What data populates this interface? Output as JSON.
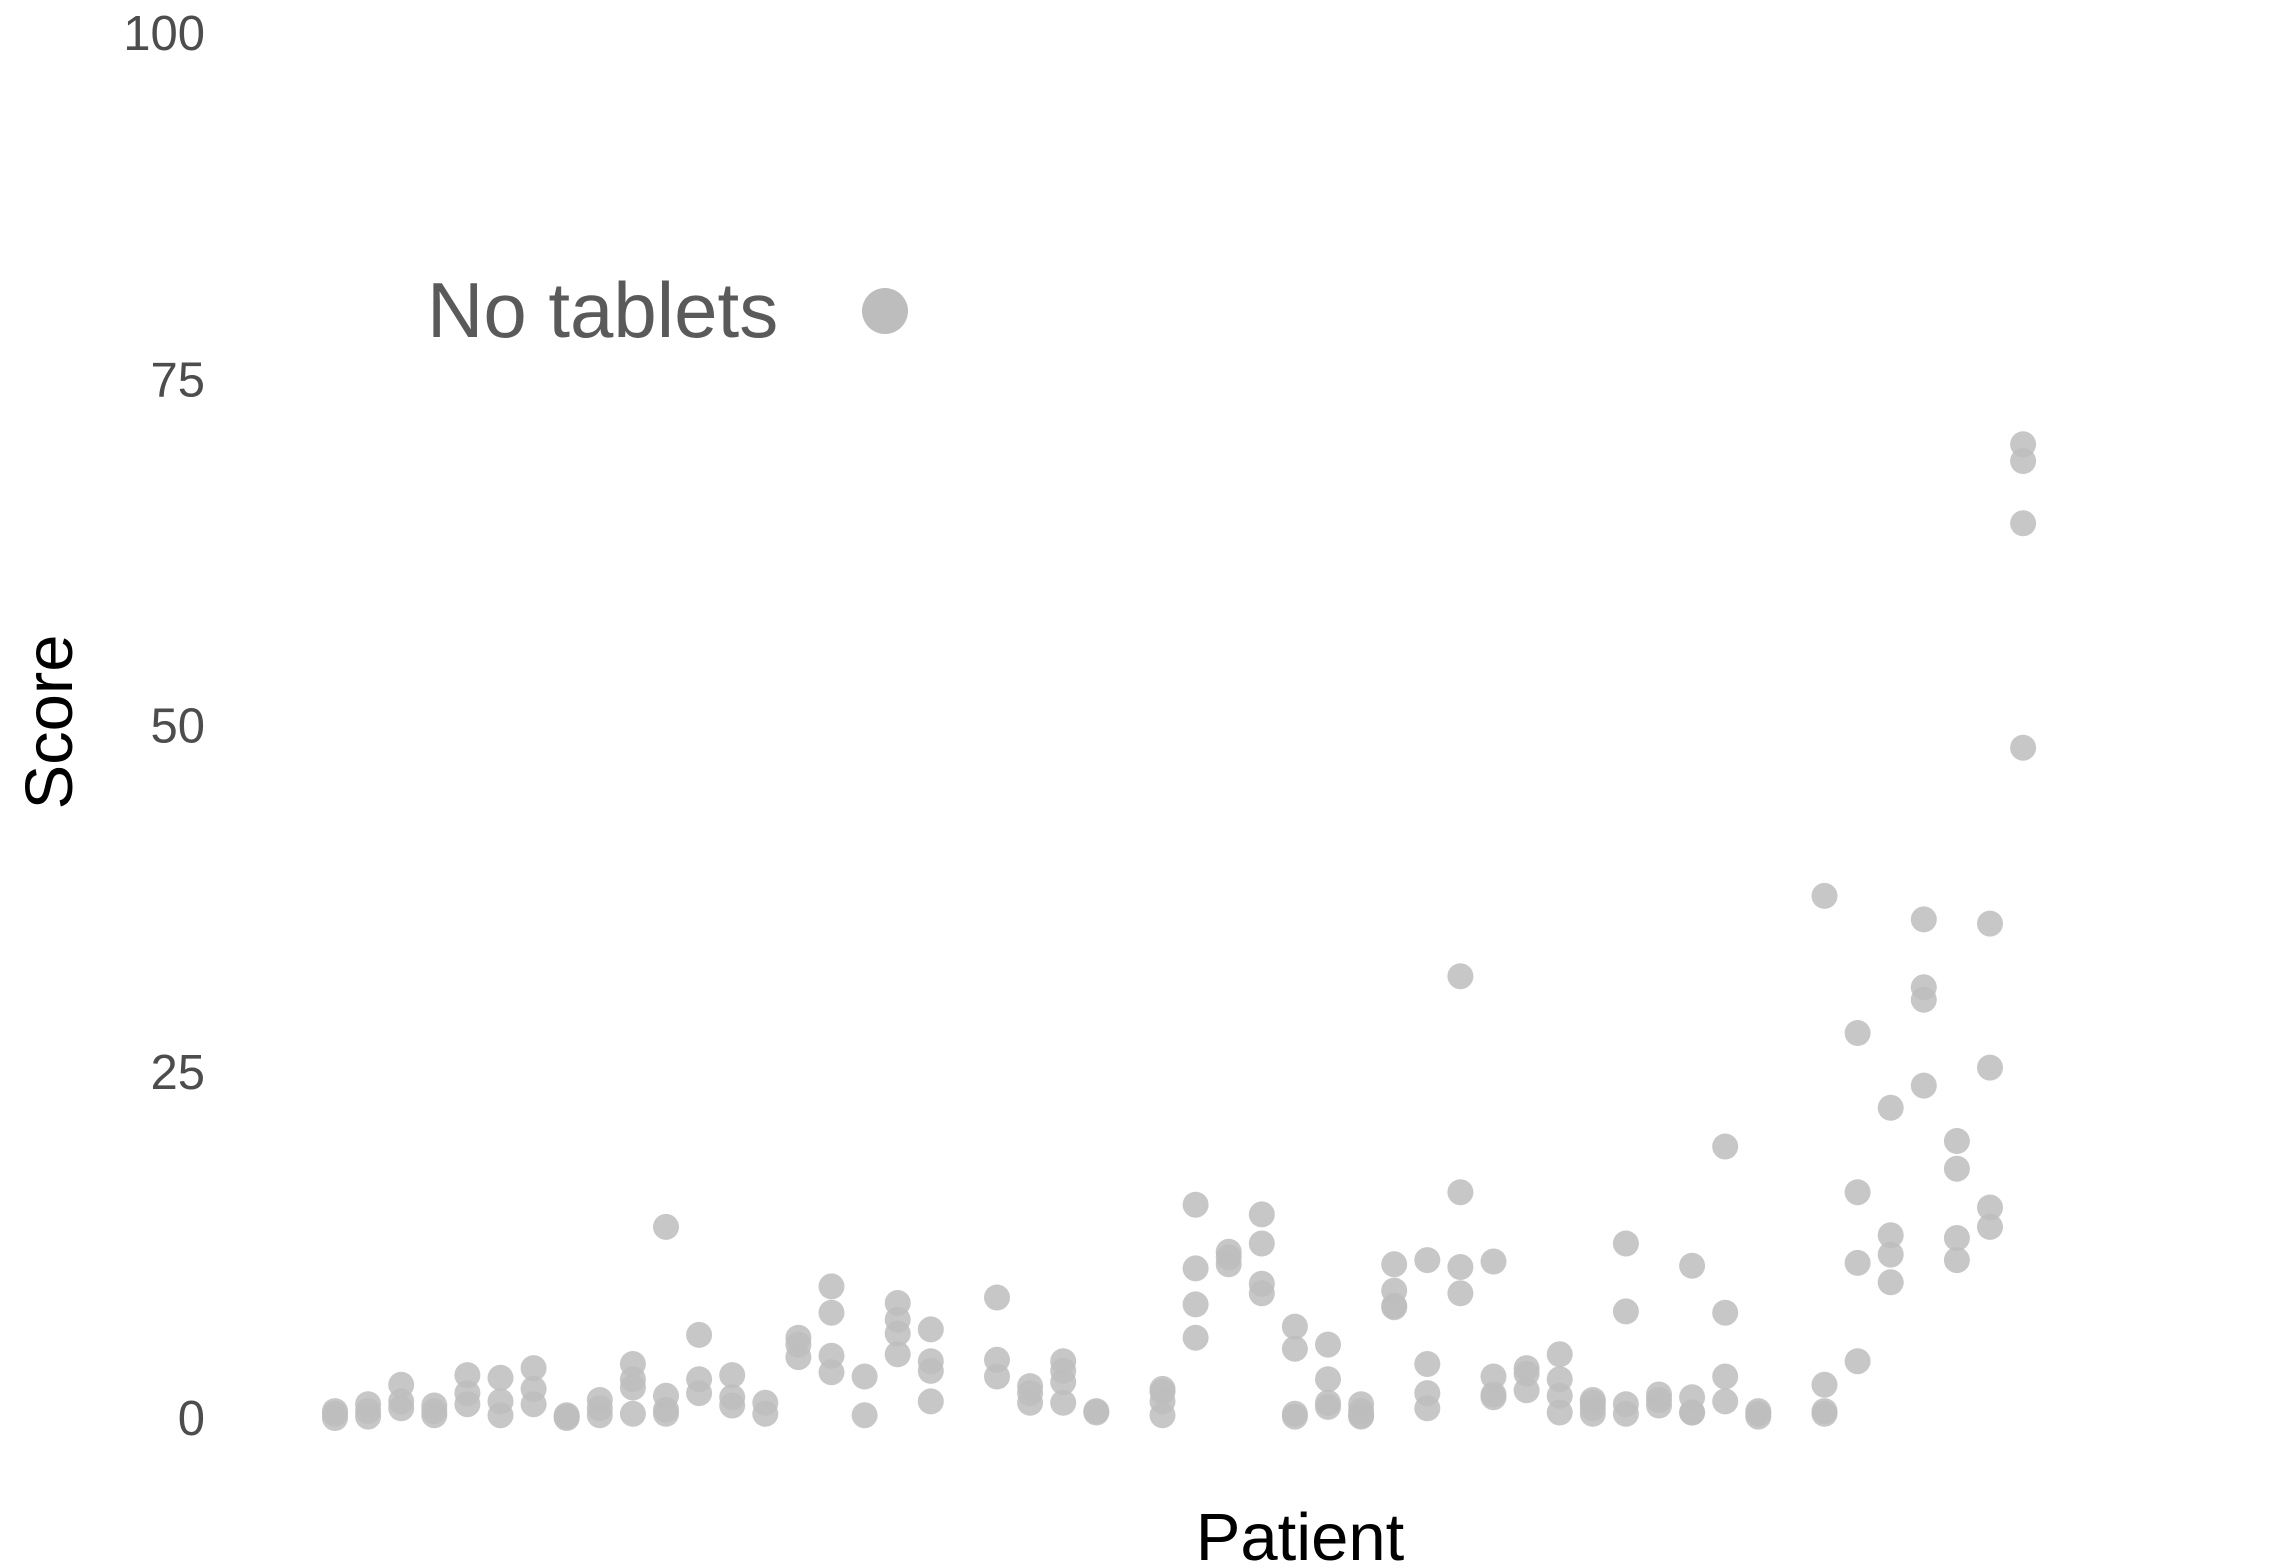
{
  "chart_data": {
    "type": "scatter",
    "title": "",
    "xlabel": "Patient",
    "ylabel": "Score",
    "ylim": [
      0,
      100
    ],
    "yticks": [
      0,
      25,
      50,
      75,
      100
    ],
    "grid": false,
    "legend_position": "top-left",
    "point_color": "#bdbdbd",
    "series": [
      {
        "name": "No tablets",
        "points": [
          {
            "x": 1,
            "y": 0.0
          },
          {
            "x": 1,
            "y": 0.3
          },
          {
            "x": 1,
            "y": 0.5
          },
          {
            "x": 2,
            "y": 0.1
          },
          {
            "x": 2,
            "y": 0.5
          },
          {
            "x": 2,
            "y": 1.0
          },
          {
            "x": 3,
            "y": 0.7
          },
          {
            "x": 3,
            "y": 1.2
          },
          {
            "x": 3,
            "y": 2.4
          },
          {
            "x": 4,
            "y": 0.2
          },
          {
            "x": 4,
            "y": 0.5
          },
          {
            "x": 4,
            "y": 0.9
          },
          {
            "x": 5,
            "y": 1.0
          },
          {
            "x": 5,
            "y": 1.8
          },
          {
            "x": 5,
            "y": 3.1
          },
          {
            "x": 6,
            "y": 0.2
          },
          {
            "x": 6,
            "y": 1.2
          },
          {
            "x": 6,
            "y": 2.9
          },
          {
            "x": 7,
            "y": 1.0
          },
          {
            "x": 7,
            "y": 2.1
          },
          {
            "x": 7,
            "y": 3.6
          },
          {
            "x": 8,
            "y": 0.0
          },
          {
            "x": 8,
            "y": 0.1
          },
          {
            "x": 8,
            "y": 0.2
          },
          {
            "x": 9,
            "y": 0.2
          },
          {
            "x": 9,
            "y": 0.7
          },
          {
            "x": 9,
            "y": 1.3
          },
          {
            "x": 10,
            "y": 0.3
          },
          {
            "x": 10,
            "y": 2.2
          },
          {
            "x": 10,
            "y": 2.8
          },
          {
            "x": 10,
            "y": 3.9
          },
          {
            "x": 11,
            "y": 0.3
          },
          {
            "x": 11,
            "y": 0.6
          },
          {
            "x": 11,
            "y": 1.6
          },
          {
            "x": 11,
            "y": 13.8
          },
          {
            "x": 12,
            "y": 1.8
          },
          {
            "x": 12,
            "y": 2.8
          },
          {
            "x": 12,
            "y": 6.0
          },
          {
            "x": 13,
            "y": 0.9
          },
          {
            "x": 13,
            "y": 1.5
          },
          {
            "x": 13,
            "y": 3.1
          },
          {
            "x": 14,
            "y": 0.3
          },
          {
            "x": 14,
            "y": 1.1
          },
          {
            "x": 15,
            "y": 4.4
          },
          {
            "x": 15,
            "y": 5.3
          },
          {
            "x": 15,
            "y": 5.8
          },
          {
            "x": 16,
            "y": 3.3
          },
          {
            "x": 16,
            "y": 4.5
          },
          {
            "x": 16,
            "y": 7.6
          },
          {
            "x": 16,
            "y": 9.5
          },
          {
            "x": 17,
            "y": 0.2
          },
          {
            "x": 17,
            "y": 3.0
          },
          {
            "x": 18,
            "y": 4.6
          },
          {
            "x": 18,
            "y": 6.1
          },
          {
            "x": 18,
            "y": 7.1
          },
          {
            "x": 18,
            "y": 8.3
          },
          {
            "x": 19,
            "y": 1.2
          },
          {
            "x": 19,
            "y": 3.4
          },
          {
            "x": 19,
            "y": 4.1
          },
          {
            "x": 19,
            "y": 6.4
          },
          {
            "x": 21,
            "y": 3.0
          },
          {
            "x": 21,
            "y": 4.2
          },
          {
            "x": 21,
            "y": 8.7
          },
          {
            "x": 22,
            "y": 1.1
          },
          {
            "x": 22,
            "y": 1.8
          },
          {
            "x": 22,
            "y": 2.3
          },
          {
            "x": 23,
            "y": 1.1
          },
          {
            "x": 23,
            "y": 2.6
          },
          {
            "x": 23,
            "y": 3.4
          },
          {
            "x": 23,
            "y": 4.1
          },
          {
            "x": 24,
            "y": 0.4
          },
          {
            "x": 24,
            "y": 0.5
          },
          {
            "x": 26,
            "y": 0.2
          },
          {
            "x": 26,
            "y": 1.2
          },
          {
            "x": 26,
            "y": 1.9
          },
          {
            "x": 26,
            "y": 2.1
          },
          {
            "x": 27,
            "y": 5.8
          },
          {
            "x": 27,
            "y": 8.2
          },
          {
            "x": 27,
            "y": 10.8
          },
          {
            "x": 27,
            "y": 15.4
          },
          {
            "x": 28,
            "y": 11.1
          },
          {
            "x": 28,
            "y": 11.6
          },
          {
            "x": 28,
            "y": 12.0
          },
          {
            "x": 29,
            "y": 9.0
          },
          {
            "x": 29,
            "y": 9.7
          },
          {
            "x": 29,
            "y": 12.6
          },
          {
            "x": 29,
            "y": 14.7
          },
          {
            "x": 30,
            "y": 0.1
          },
          {
            "x": 30,
            "y": 0.3
          },
          {
            "x": 30,
            "y": 5.0
          },
          {
            "x": 30,
            "y": 6.6
          },
          {
            "x": 31,
            "y": 0.8
          },
          {
            "x": 31,
            "y": 1.1
          },
          {
            "x": 31,
            "y": 2.8
          },
          {
            "x": 31,
            "y": 5.3
          },
          {
            "x": 32,
            "y": 0.1
          },
          {
            "x": 32,
            "y": 0.2
          },
          {
            "x": 32,
            "y": 0.5
          },
          {
            "x": 32,
            "y": 1.0
          },
          {
            "x": 33,
            "y": 8.0
          },
          {
            "x": 33,
            "y": 8.1
          },
          {
            "x": 33,
            "y": 9.2
          },
          {
            "x": 33,
            "y": 11.1
          },
          {
            "x": 34,
            "y": 0.7
          },
          {
            "x": 34,
            "y": 1.8
          },
          {
            "x": 34,
            "y": 3.9
          },
          {
            "x": 34,
            "y": 11.4
          },
          {
            "x": 35,
            "y": 9.0
          },
          {
            "x": 35,
            "y": 10.9
          },
          {
            "x": 35,
            "y": 16.3
          },
          {
            "x": 35,
            "y": 31.9
          },
          {
            "x": 36,
            "y": 1.5
          },
          {
            "x": 36,
            "y": 1.7
          },
          {
            "x": 36,
            "y": 3.0
          },
          {
            "x": 36,
            "y": 11.3
          },
          {
            "x": 37,
            "y": 2.0
          },
          {
            "x": 37,
            "y": 3.2
          },
          {
            "x": 37,
            "y": 3.6
          },
          {
            "x": 38,
            "y": 0.4
          },
          {
            "x": 38,
            "y": 1.6
          },
          {
            "x": 38,
            "y": 2.8
          },
          {
            "x": 38,
            "y": 4.6
          },
          {
            "x": 39,
            "y": 0.3
          },
          {
            "x": 39,
            "y": 0.7
          },
          {
            "x": 39,
            "y": 1.1
          },
          {
            "x": 39,
            "y": 1.3
          },
          {
            "x": 40,
            "y": 0.3
          },
          {
            "x": 40,
            "y": 1.0
          },
          {
            "x": 40,
            "y": 7.7
          },
          {
            "x": 40,
            "y": 12.6
          },
          {
            "x": 41,
            "y": 0.9
          },
          {
            "x": 41,
            "y": 1.3
          },
          {
            "x": 41,
            "y": 1.7
          },
          {
            "x": 42,
            "y": 0.4
          },
          {
            "x": 42,
            "y": 0.4
          },
          {
            "x": 42,
            "y": 1.5
          },
          {
            "x": 42,
            "y": 11.0
          },
          {
            "x": 43,
            "y": 1.2
          },
          {
            "x": 43,
            "y": 3.0
          },
          {
            "x": 43,
            "y": 7.6
          },
          {
            "x": 43,
            "y": 19.6
          },
          {
            "x": 44,
            "y": 0.1
          },
          {
            "x": 44,
            "y": 0.3
          },
          {
            "x": 44,
            "y": 0.5
          },
          {
            "x": 46,
            "y": 0.3
          },
          {
            "x": 46,
            "y": 0.5
          },
          {
            "x": 46,
            "y": 2.4
          },
          {
            "x": 46,
            "y": 37.7
          },
          {
            "x": 47,
            "y": 4.1
          },
          {
            "x": 47,
            "y": 11.2
          },
          {
            "x": 47,
            "y": 16.3
          },
          {
            "x": 47,
            "y": 27.8
          },
          {
            "x": 48,
            "y": 9.8
          },
          {
            "x": 48,
            "y": 11.8
          },
          {
            "x": 48,
            "y": 13.2
          },
          {
            "x": 48,
            "y": 22.4
          },
          {
            "x": 49,
            "y": 24.0
          },
          {
            "x": 49,
            "y": 30.2
          },
          {
            "x": 49,
            "y": 31.1
          },
          {
            "x": 49,
            "y": 36.0
          },
          {
            "x": 50,
            "y": 11.4
          },
          {
            "x": 50,
            "y": 13.0
          },
          {
            "x": 50,
            "y": 18.0
          },
          {
            "x": 50,
            "y": 20.0
          },
          {
            "x": 51,
            "y": 13.8
          },
          {
            "x": 51,
            "y": 15.2
          },
          {
            "x": 51,
            "y": 25.3
          },
          {
            "x": 51,
            "y": 35.7
          },
          {
            "x": 52,
            "y": 48.4
          },
          {
            "x": 52,
            "y": 64.6
          },
          {
            "x": 52,
            "y": 69.1
          },
          {
            "x": 52,
            "y": 70.3
          }
        ]
      }
    ]
  }
}
